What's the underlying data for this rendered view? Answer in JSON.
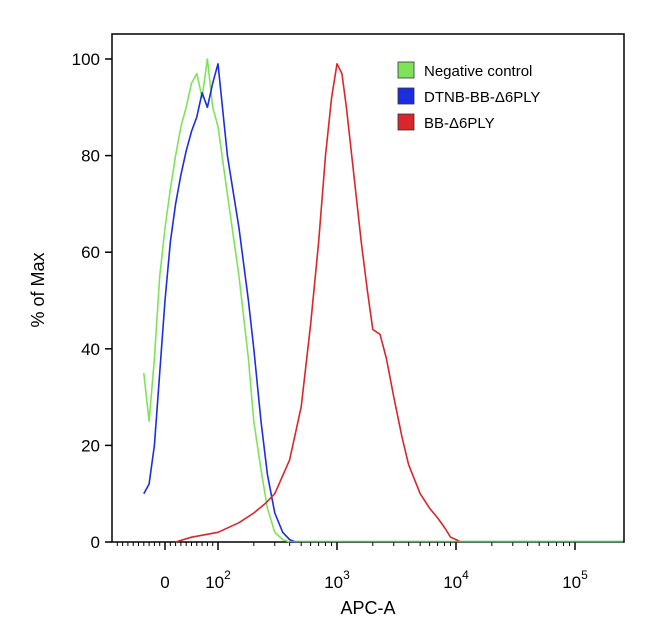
{
  "chart_data": {
    "type": "line",
    "xlabel": "APC-A",
    "ylabel": "% of Max",
    "xscale": "logicle",
    "ylim": [
      0,
      100
    ],
    "yticks": [
      "0",
      "20",
      "40",
      "60",
      "80",
      "100"
    ],
    "xticks": [
      {
        "base": "0",
        "exp": ""
      },
      {
        "base": "10",
        "exp": "2"
      },
      {
        "base": "10",
        "exp": "3"
      },
      {
        "base": "10",
        "exp": "4"
      },
      {
        "base": "10",
        "exp": "5"
      }
    ],
    "legend_position": "top-right",
    "grid": false,
    "series": [
      {
        "name": "Negative control",
        "color": "#7FE35A",
        "x": [
          -40,
          -30,
          -20,
          -10,
          0,
          10,
          20,
          30,
          40,
          50,
          60,
          70,
          80,
          90,
          100,
          120,
          150,
          180,
          200,
          230,
          260,
          300,
          350,
          400
        ],
        "y": [
          35,
          25,
          38,
          55,
          65,
          73,
          80,
          86,
          90,
          95,
          97,
          92,
          100,
          90,
          86,
          72,
          55,
          38,
          25,
          15,
          7,
          2,
          0.5,
          0
        ]
      },
      {
        "name": "DTNB-BB-Δ6PLY",
        "color": "#1A2EE0",
        "x": [
          -40,
          -30,
          -20,
          -10,
          0,
          10,
          20,
          30,
          40,
          50,
          60,
          70,
          80,
          90,
          100,
          120,
          150,
          180,
          200,
          230,
          260,
          300,
          350,
          400,
          450
        ],
        "y": [
          10,
          12,
          20,
          35,
          50,
          62,
          70,
          76,
          81,
          85,
          88,
          93,
          90,
          95,
          99,
          80,
          65,
          50,
          40,
          25,
          14,
          6,
          2,
          0.5,
          0
        ]
      },
      {
        "name": "BB-Δ6PLY",
        "color": "#D9262A",
        "x": [
          20,
          50,
          100,
          150,
          200,
          250,
          300,
          400,
          500,
          600,
          700,
          800,
          900,
          1000,
          1100,
          1200,
          1400,
          1600,
          1800,
          2000,
          2300,
          2600,
          3000,
          3500,
          4000,
          5000,
          6000,
          7000,
          8000,
          9000,
          10000,
          11000
        ],
        "y": [
          0,
          1,
          2,
          4,
          6,
          8,
          10,
          17,
          28,
          45,
          62,
          80,
          92,
          99,
          97,
          90,
          75,
          62,
          52,
          44,
          43,
          38,
          30,
          22,
          16,
          10,
          7,
          5,
          3,
          1,
          0.5,
          0
        ]
      }
    ]
  }
}
